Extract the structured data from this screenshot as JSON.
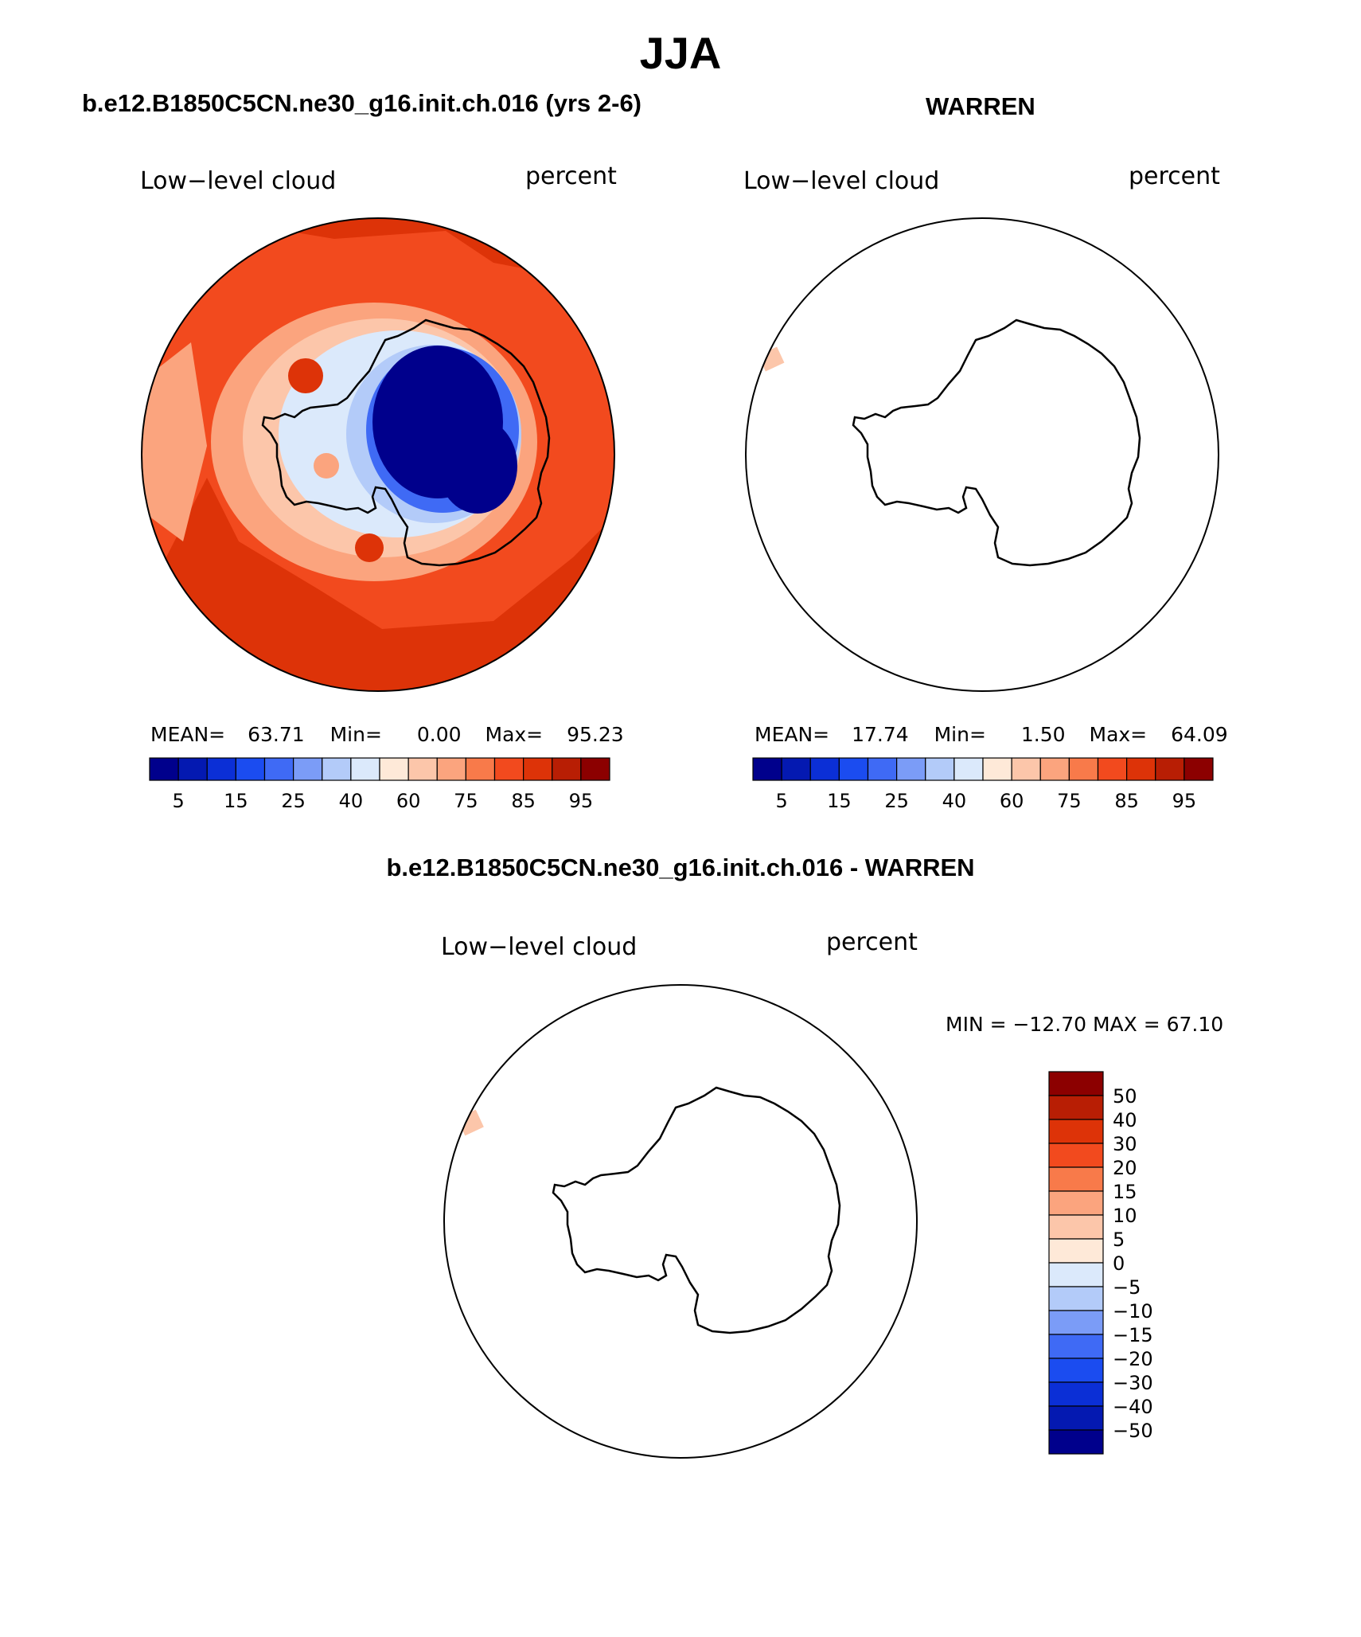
{
  "title": "JJA",
  "colors": {
    "levels15": [
      "#00008c",
      "#0419b1",
      "#0b2fd6",
      "#1b4cf0",
      "#3f6af5",
      "#7b9cf7",
      "#b3cbf9",
      "#dbe9fb",
      "#fee9d8",
      "#fcc6aa",
      "#fba47e",
      "#f87a4a",
      "#f24a1e",
      "#dd3308",
      "#b81e04",
      "#8c0000"
    ],
    "diff": [
      "#00008c",
      "#0419b1",
      "#0b2fd6",
      "#1b4cf0",
      "#3f6af5",
      "#7b9cf7",
      "#b3cbf9",
      "#dbe9fb",
      "#fee9d8",
      "#fcc6aa",
      "#fba47e",
      "#f87a4a",
      "#f24a1e",
      "#dd3308",
      "#b81e04",
      "#8c0000"
    ]
  },
  "panels": [
    {
      "name": "model",
      "title": "b.e12.B1850C5CN.ne30_g16.init.ch.016 (yrs 2-6)",
      "left_label": "Low−level cloud",
      "right_label": "percent",
      "stats": {
        "mean_label": "MEAN=",
        "mean": "63.71",
        "min_label": "Min=",
        "min": "0.00",
        "max_label": "Max=",
        "max": "95.23"
      }
    },
    {
      "name": "obs",
      "title": "WARREN",
      "left_label": "Low−level cloud",
      "right_label": "percent",
      "stats": {
        "mean_label": "MEAN=",
        "mean": "17.74",
        "min_label": "Min=",
        "min": "1.50",
        "max_label": "Max=",
        "max": "64.09"
      }
    },
    {
      "name": "diff",
      "title": "b.e12.B1850C5CN.ne30_g16.init.ch.016 - WARREN",
      "left_label": "Low−level cloud",
      "right_label": "percent",
      "minmax": "MIN = −12.70 MAX =   67.10"
    }
  ],
  "colorbar_h": {
    "tick_labels": [
      "5",
      "15",
      "25",
      "40",
      "60",
      "75",
      "85",
      "95"
    ]
  },
  "colorbar_v": {
    "tick_labels": [
      "50",
      "40",
      "30",
      "20",
      "15",
      "10",
      "5",
      "0",
      "−5",
      "−10",
      "−15",
      "−20",
      "−30",
      "−40",
      "−50"
    ]
  }
}
